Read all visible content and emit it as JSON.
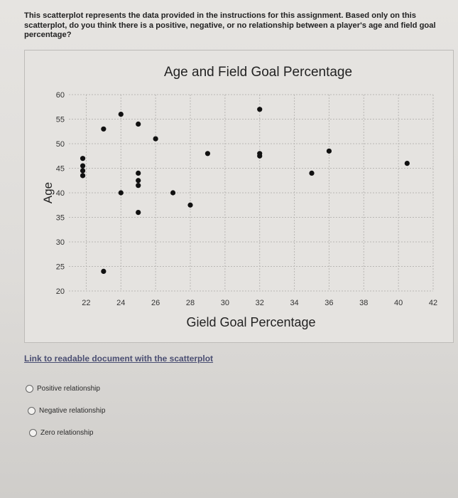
{
  "question": {
    "text": "This scatterplot represents the data provided in the instructions for this assignment. Based only on this scatterplot, do you think there is a positive, negative, or no relationship between a player's age and field goal percentage?"
  },
  "link": {
    "label": "Link to readable document with the scatterplot"
  },
  "options": [
    {
      "label": "Positive relationship",
      "selected": false
    },
    {
      "label": "Negative relationship",
      "selected": false
    },
    {
      "label": "Zero relationship",
      "selected": false
    }
  ],
  "chart_data": {
    "type": "scatter",
    "title": "Age and Field Goal Percentage",
    "xlabel": "Gield Goal Percentage",
    "ylabel": "Age",
    "xlim": [
      21,
      42
    ],
    "ylim": [
      20,
      60
    ],
    "xticks": [
      22,
      24,
      26,
      28,
      30,
      32,
      34,
      36,
      38,
      40,
      42
    ],
    "yticks": [
      20,
      25,
      30,
      35,
      40,
      45,
      50,
      55,
      60
    ],
    "grid": true,
    "point_color": "#111111",
    "points": [
      {
        "x": 21.8,
        "y": 47
      },
      {
        "x": 21.8,
        "y": 45.5
      },
      {
        "x": 21.8,
        "y": 44.5
      },
      {
        "x": 21.8,
        "y": 43.5
      },
      {
        "x": 23,
        "y": 53
      },
      {
        "x": 23,
        "y": 24
      },
      {
        "x": 24,
        "y": 56
      },
      {
        "x": 24,
        "y": 40
      },
      {
        "x": 25,
        "y": 54
      },
      {
        "x": 25,
        "y": 44
      },
      {
        "x": 25,
        "y": 42.5
      },
      {
        "x": 25,
        "y": 41.5
      },
      {
        "x": 25,
        "y": 36
      },
      {
        "x": 26,
        "y": 51
      },
      {
        "x": 27,
        "y": 40
      },
      {
        "x": 28,
        "y": 37.5
      },
      {
        "x": 29,
        "y": 48
      },
      {
        "x": 32,
        "y": 57
      },
      {
        "x": 32,
        "y": 48
      },
      {
        "x": 32,
        "y": 47.5
      },
      {
        "x": 35,
        "y": 44
      },
      {
        "x": 36,
        "y": 48.5
      },
      {
        "x": 40.5,
        "y": 46
      }
    ]
  }
}
